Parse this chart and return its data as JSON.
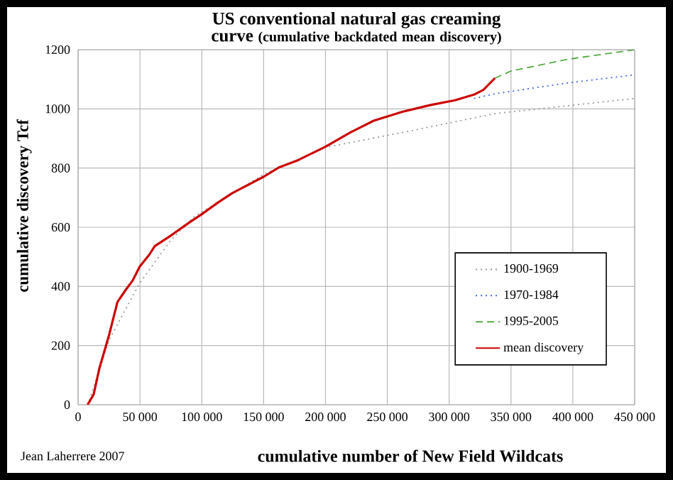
{
  "chart_data": {
    "type": "line",
    "title": "US conventional natural gas creaming curve",
    "subtitle": "(cumulative backdated mean discovery)",
    "xlabel": "cumulative number of New Field Wildcats",
    "ylabel": "cumulative discovery  Tcf",
    "annotations": [
      "Jean Laherrere 2007"
    ],
    "xlim": [
      0,
      450000
    ],
    "ylim": [
      0,
      1200
    ],
    "xticks": [
      0,
      {
        "value": 50000,
        "label": "50 000"
      },
      {
        "value": 100000,
        "label": "100 000"
      },
      {
        "value": 150000,
        "label": "150 000"
      },
      {
        "value": 200000,
        "label": "200 000"
      },
      {
        "value": 250000,
        "label": "250 000"
      },
      {
        "value": 300000,
        "label": "300 000"
      },
      {
        "value": 350000,
        "label": "350 000"
      },
      {
        "value": 400000,
        "label": "400 000"
      },
      {
        "value": 450000,
        "label": "450 000"
      }
    ],
    "yticks": [
      0,
      200,
      400,
      600,
      800,
      1000,
      1200
    ],
    "grid": true,
    "legend": "right",
    "series": [
      {
        "name": "1900-1969",
        "color": "#999999",
        "line_style": "dotted",
        "x": [
          8000,
          25000,
          49800,
          74700,
          93700,
          150200,
          200000,
          262000,
          337000,
          450000
        ],
        "values": [
          0,
          219,
          411,
          555,
          635,
          779,
          870,
          920,
          984,
          1035
        ]
      },
      {
        "name": "1970-1984",
        "color": "#4466dd",
        "line_style": "dotted",
        "x": [
          320000,
          337000,
          396500,
          450000
        ],
        "values": [
          1035,
          1051,
          1088,
          1115
        ]
      },
      {
        "name": "1995-2005",
        "color": "#55aa44",
        "line_style": "dashed",
        "x": [
          337000,
          350000,
          396500,
          450000
        ],
        "values": [
          1104,
          1128,
          1168,
          1200
        ]
      },
      {
        "name": "mean discovery",
        "color": "#cc0000",
        "line_style": "solid",
        "x": [
          7700,
          12600,
          17200,
          25000,
          31800,
          38300,
          44000,
          49800,
          57500,
          62000,
          74700,
          92000,
          99600,
          113000,
          124500,
          150200,
          162800,
          178000,
          200000,
          220000,
          239000,
          262000,
          285000,
          304600,
          320000,
          327600,
          337000
        ],
        "values": [
          0,
          35,
          123,
          235,
          347,
          387,
          419,
          467,
          507,
          536,
          571,
          622,
          643,
          683,
          715,
          771,
          803,
          827,
          872,
          920,
          960,
          990,
          1013,
          1029,
          1048,
          1064,
          1104
        ]
      }
    ]
  }
}
